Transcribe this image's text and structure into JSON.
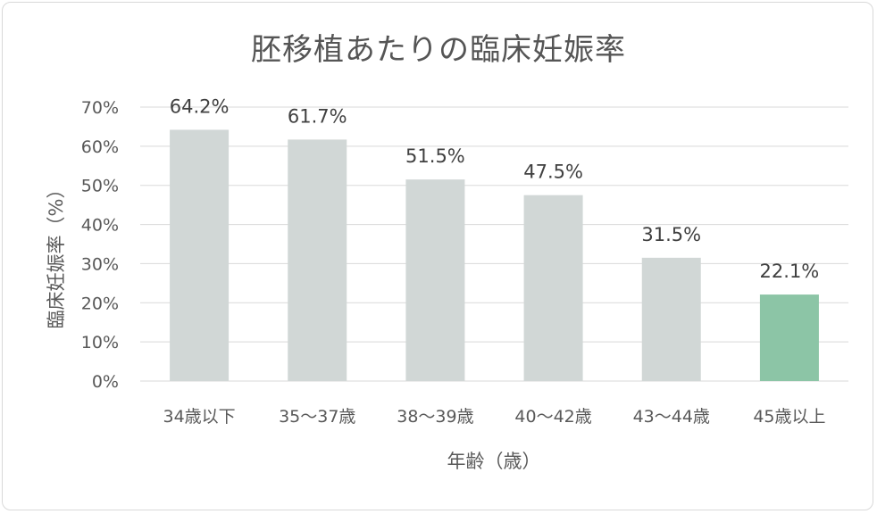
{
  "chart_data": {
    "type": "bar",
    "title": "胚移植あたりの臨床妊娠率",
    "xlabel": "年齢（歳）",
    "ylabel": "臨床妊娠率（%）",
    "ylim": [
      0,
      70
    ],
    "yticks": [
      "0%",
      "10%",
      "20%",
      "30%",
      "40%",
      "50%",
      "60%",
      "70%"
    ],
    "grid": true,
    "categories": [
      "34歳以下",
      "35〜37歳",
      "38〜39歳",
      "40〜42歳",
      "43〜44歳",
      "45歳以上"
    ],
    "values": [
      64.2,
      61.7,
      51.5,
      47.5,
      31.5,
      22.1
    ],
    "data_labels": [
      "64.2%",
      "61.7%",
      "51.5%",
      "47.5%",
      "31.5%",
      "22.1%"
    ],
    "colors": [
      "#d1d7d6",
      "#d1d7d6",
      "#d1d7d6",
      "#d1d7d6",
      "#d1d7d6",
      "#8cc5a6"
    ],
    "gridline_color": "#d9d9d9"
  }
}
